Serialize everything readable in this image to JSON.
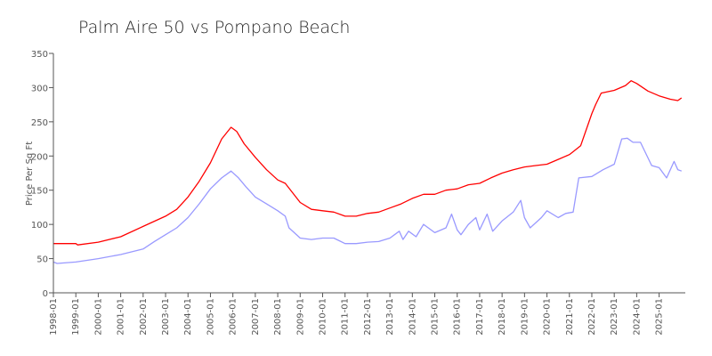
{
  "chart_data": {
    "type": "line",
    "title": "Palm Aire 50 vs Pompano Beach",
    "xlabel": "",
    "ylabel": "Price Per Sq Ft",
    "ylim": [
      0,
      350
    ],
    "xlim": [
      "1998-01",
      "2026-03"
    ],
    "yticks": [
      "0",
      "50",
      "100",
      "150",
      "200",
      "250",
      "300",
      "350"
    ],
    "xticks": [
      "1998-01",
      "1999-01",
      "2000-01",
      "2001-01",
      "2002-01",
      "2003-01",
      "2004-01",
      "2005-01",
      "2006-01",
      "2007-01",
      "2008-01",
      "2009-01",
      "2010-01",
      "2011-01",
      "2012-01",
      "2013-01",
      "2014-01",
      "2015-01",
      "2016-01",
      "2017-01",
      "2018-01",
      "2019-01",
      "2020-01",
      "2021-01",
      "2022-01",
      "2023-01",
      "2024-01",
      "2025-01"
    ],
    "legend": "none",
    "grid": false,
    "series": [
      {
        "color": "#ff0000",
        "points": [
          [
            "1998-01",
            72
          ],
          [
            "1999-01",
            72
          ],
          [
            "1999-02",
            70
          ],
          [
            "2000-01",
            74
          ],
          [
            "2001-01",
            82
          ],
          [
            "2002-01",
            97
          ],
          [
            "2003-01",
            112
          ],
          [
            "2003-07",
            122
          ],
          [
            "2004-01",
            140
          ],
          [
            "2004-07",
            163
          ],
          [
            "2005-01",
            190
          ],
          [
            "2005-07",
            225
          ],
          [
            "2005-12",
            242
          ],
          [
            "2006-03",
            236
          ],
          [
            "2006-07",
            218
          ],
          [
            "2007-01",
            198
          ],
          [
            "2007-07",
            180
          ],
          [
            "2008-01",
            165
          ],
          [
            "2008-05",
            160
          ],
          [
            "2009-01",
            132
          ],
          [
            "2009-07",
            122
          ],
          [
            "2010-01",
            120
          ],
          [
            "2010-07",
            118
          ],
          [
            "2011-01",
            112
          ],
          [
            "2011-07",
            112
          ],
          [
            "2012-01",
            116
          ],
          [
            "2012-07",
            118
          ],
          [
            "2013-01",
            124
          ],
          [
            "2013-07",
            130
          ],
          [
            "2014-01",
            138
          ],
          [
            "2014-07",
            144
          ],
          [
            "2015-01",
            144
          ],
          [
            "2015-07",
            150
          ],
          [
            "2016-01",
            152
          ],
          [
            "2016-07",
            158
          ],
          [
            "2017-01",
            160
          ],
          [
            "2017-07",
            168
          ],
          [
            "2018-01",
            175
          ],
          [
            "2018-07",
            180
          ],
          [
            "2019-01",
            184
          ],
          [
            "2019-07",
            186
          ],
          [
            "2020-01",
            188
          ],
          [
            "2020-07",
            195
          ],
          [
            "2021-01",
            202
          ],
          [
            "2021-07",
            215
          ],
          [
            "2022-01",
            262
          ],
          [
            "2022-03",
            275
          ],
          [
            "2022-06",
            292
          ],
          [
            "2023-01",
            296
          ],
          [
            "2023-07",
            303
          ],
          [
            "2023-10",
            310
          ],
          [
            "2024-01",
            306
          ],
          [
            "2024-07",
            295
          ],
          [
            "2025-01",
            288
          ],
          [
            "2025-07",
            283
          ],
          [
            "2025-11",
            281
          ],
          [
            "2026-01",
            285
          ]
        ]
      },
      {
        "color": "#9999ff",
        "points": [
          [
            "1998-01",
            45
          ],
          [
            "1998-03",
            43
          ],
          [
            "1999-01",
            45
          ],
          [
            "2000-01",
            50
          ],
          [
            "2001-01",
            56
          ],
          [
            "2002-01",
            64
          ],
          [
            "2002-07",
            75
          ],
          [
            "2003-01",
            85
          ],
          [
            "2003-07",
            95
          ],
          [
            "2004-01",
            110
          ],
          [
            "2004-07",
            130
          ],
          [
            "2005-01",
            152
          ],
          [
            "2005-07",
            168
          ],
          [
            "2005-12",
            178
          ],
          [
            "2006-04",
            168
          ],
          [
            "2006-08",
            155
          ],
          [
            "2007-01",
            140
          ],
          [
            "2007-07",
            130
          ],
          [
            "2008-01",
            120
          ],
          [
            "2008-05",
            112
          ],
          [
            "2008-07",
            95
          ],
          [
            "2009-01",
            80
          ],
          [
            "2009-07",
            78
          ],
          [
            "2010-01",
            80
          ],
          [
            "2010-07",
            80
          ],
          [
            "2011-01",
            72
          ],
          [
            "2011-07",
            72
          ],
          [
            "2012-01",
            74
          ],
          [
            "2012-07",
            75
          ],
          [
            "2013-01",
            80
          ],
          [
            "2013-06",
            90
          ],
          [
            "2013-08",
            78
          ],
          [
            "2013-11",
            90
          ],
          [
            "2014-03",
            82
          ],
          [
            "2014-07",
            100
          ],
          [
            "2015-01",
            88
          ],
          [
            "2015-07",
            95
          ],
          [
            "2015-10",
            115
          ],
          [
            "2016-01",
            92
          ],
          [
            "2016-03",
            85
          ],
          [
            "2016-07",
            100
          ],
          [
            "2016-11",
            110
          ],
          [
            "2017-01",
            92
          ],
          [
            "2017-05",
            115
          ],
          [
            "2017-08",
            90
          ],
          [
            "2018-01",
            105
          ],
          [
            "2018-07",
            118
          ],
          [
            "2018-11",
            135
          ],
          [
            "2019-01",
            110
          ],
          [
            "2019-04",
            95
          ],
          [
            "2019-10",
            110
          ],
          [
            "2020-01",
            120
          ],
          [
            "2020-07",
            110
          ],
          [
            "2020-11",
            116
          ],
          [
            "2021-03",
            118
          ],
          [
            "2021-06",
            168
          ],
          [
            "2022-01",
            170
          ],
          [
            "2022-07",
            180
          ],
          [
            "2023-01",
            188
          ],
          [
            "2023-05",
            225
          ],
          [
            "2023-08",
            226
          ],
          [
            "2023-11",
            220
          ],
          [
            "2024-03",
            220
          ],
          [
            "2024-09",
            186
          ],
          [
            "2025-01",
            183
          ],
          [
            "2025-05",
            168
          ],
          [
            "2025-09",
            192
          ],
          [
            "2025-11",
            180
          ],
          [
            "2026-01",
            178
          ]
        ]
      }
    ]
  }
}
